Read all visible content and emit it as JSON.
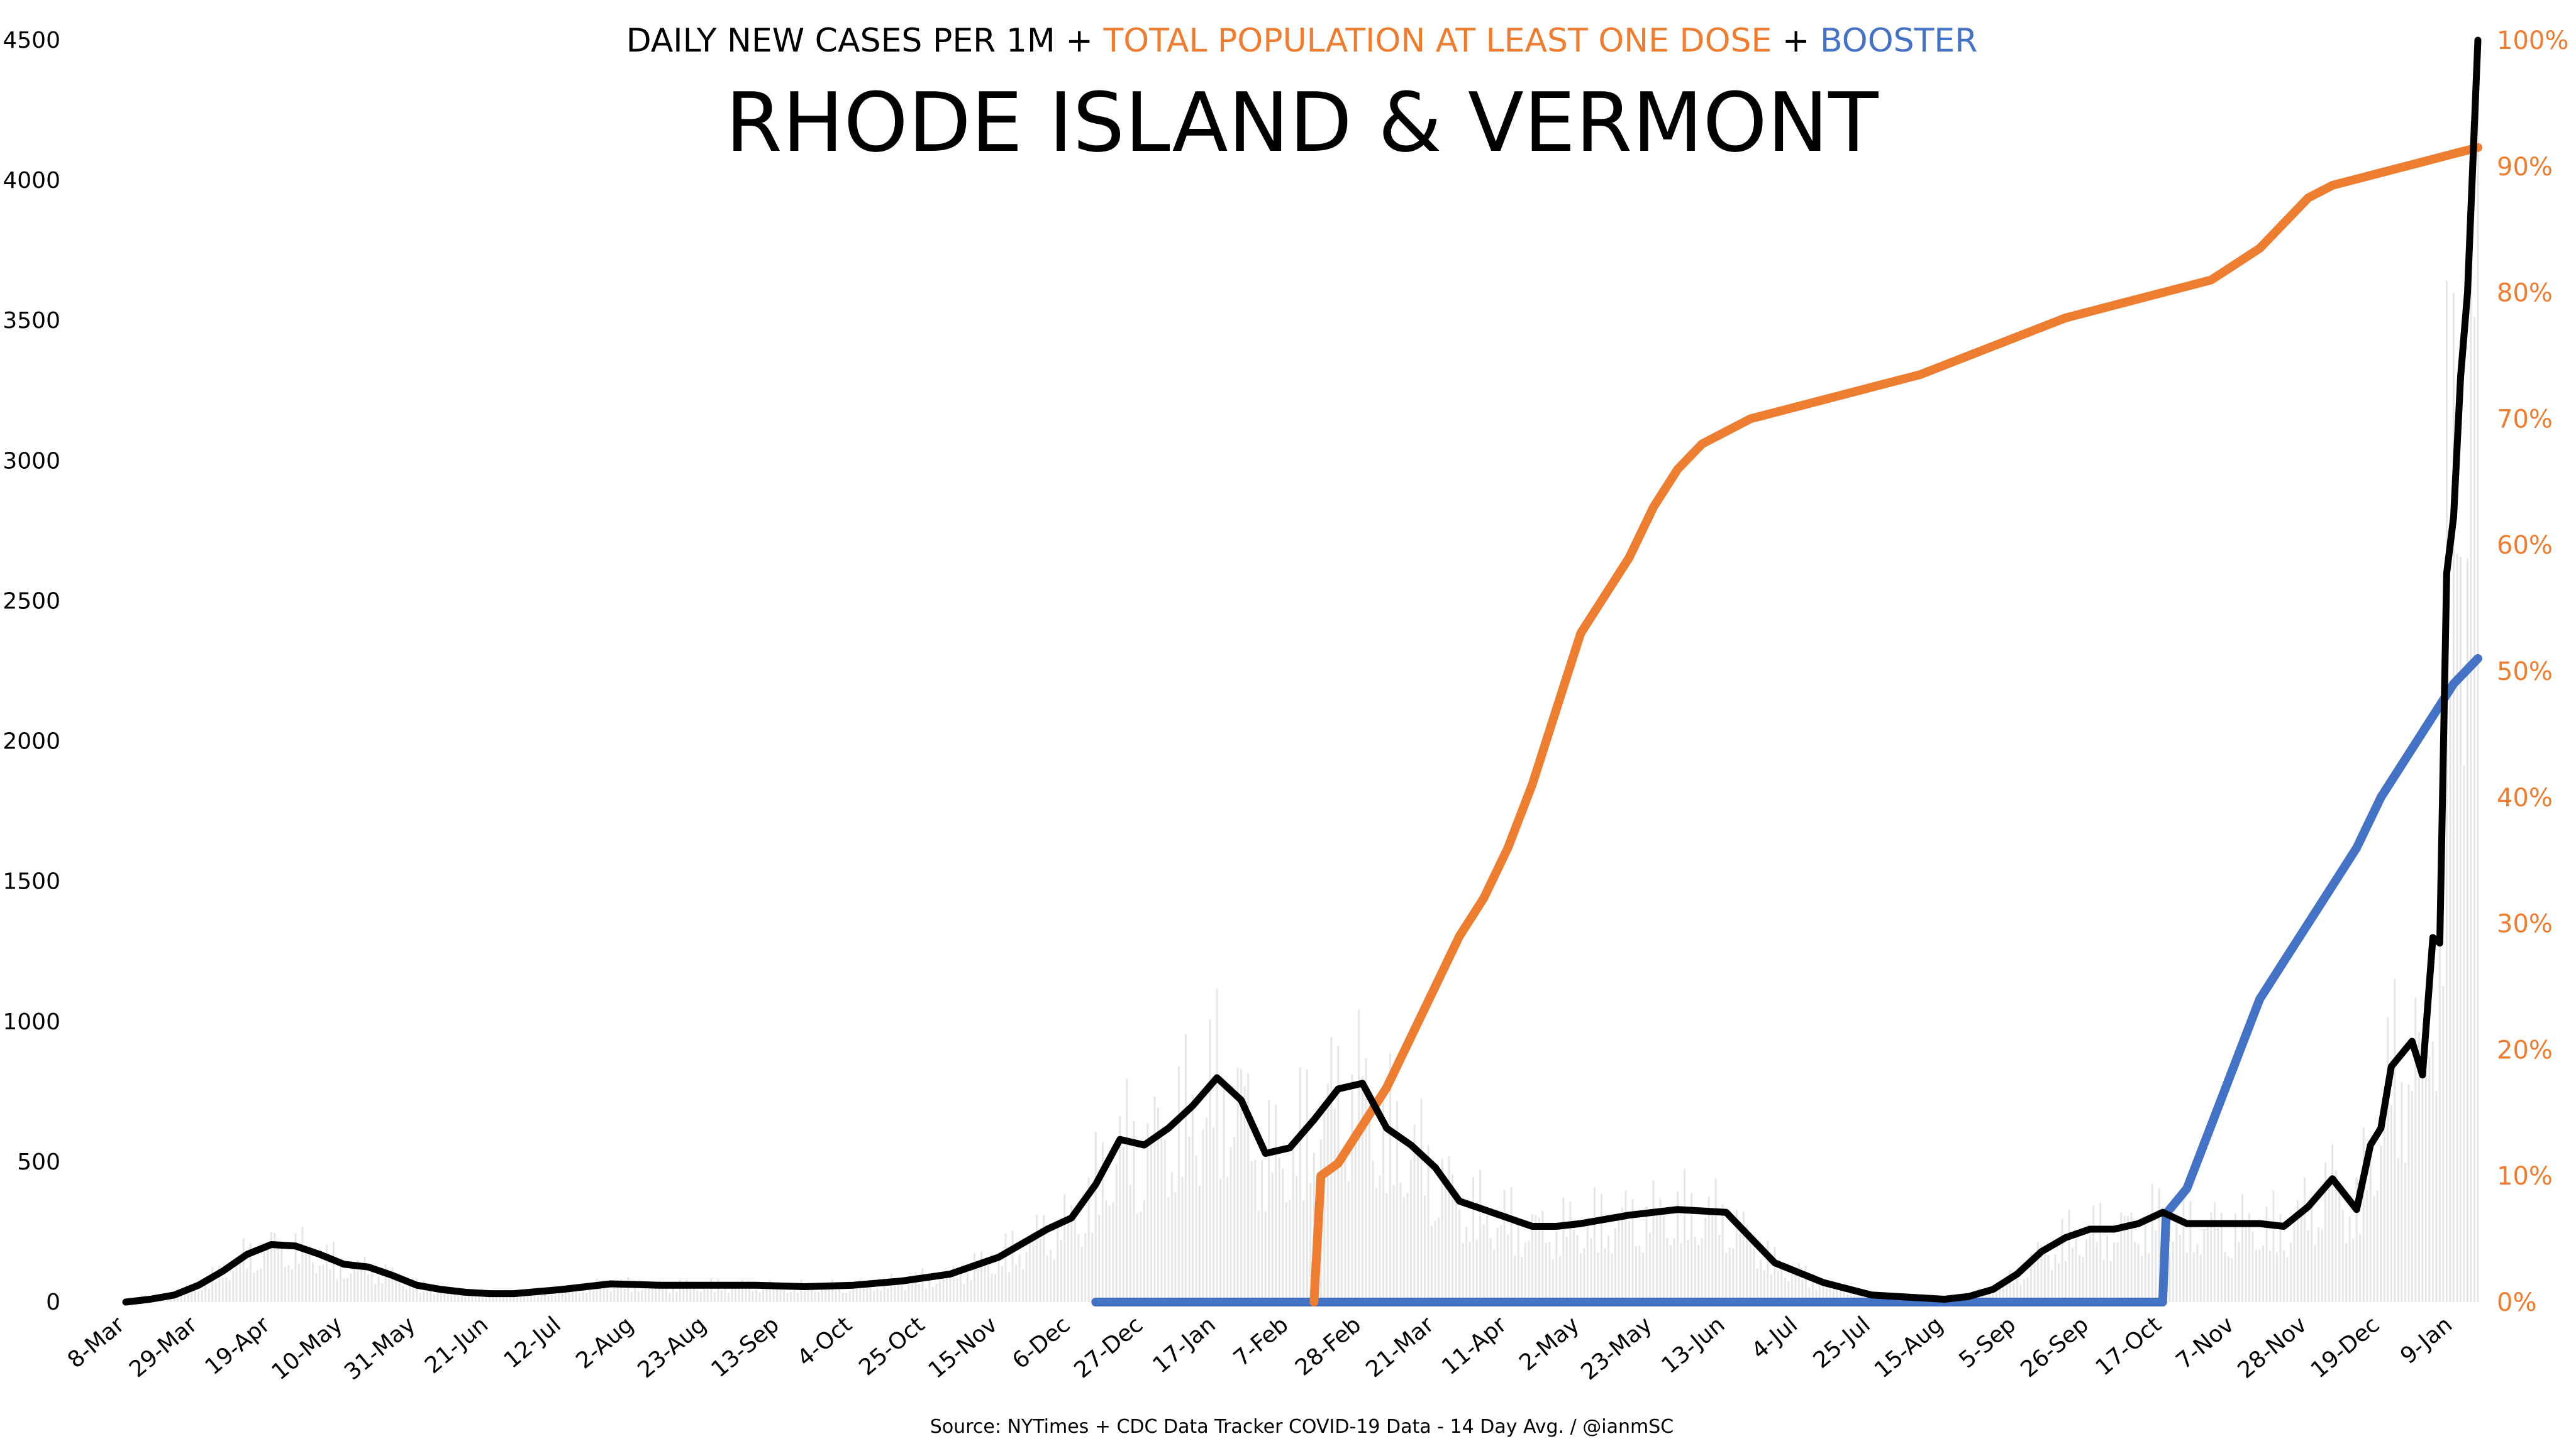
{
  "chart_data": {
    "type": "line",
    "supertitle_parts": [
      {
        "text": "DAILY NEW CASES PER 1M",
        "color": "#000000"
      },
      {
        "text": " + ",
        "color": "#000000"
      },
      {
        "text": "TOTAL POPULATION AT LEAST ONE DOSE",
        "color": "#ED7D31"
      },
      {
        "text": " + ",
        "color": "#000000"
      },
      {
        "text": "BOOSTER",
        "color": "#4472C4"
      }
    ],
    "title": "RHODE ISLAND & VERMONT",
    "source": "Source: NYTimes + CDC Data Tracker COVID-19 Data - 14 Day Avg. / @ianmSC",
    "x_tick_labels": [
      "8-Mar",
      "29-Mar",
      "19-Apr",
      "10-May",
      "31-May",
      "21-Jun",
      "12-Jul",
      "2-Aug",
      "23-Aug",
      "13-Sep",
      "4-Oct",
      "25-Oct",
      "15-Nov",
      "6-Dec",
      "27-Dec",
      "17-Jan",
      "7-Feb",
      "28-Feb",
      "21-Mar",
      "11-Apr",
      "2-May",
      "23-May",
      "13-Jun",
      "4-Jul",
      "25-Jul",
      "15-Aug",
      "5-Sep",
      "26-Sep",
      "17-Oct",
      "7-Nov",
      "28-Nov",
      "19-Dec",
      "9-Jan"
    ],
    "y_left": {
      "min": 0,
      "max": 4500,
      "step": 500,
      "ticks": [
        "0",
        "500",
        "1000",
        "1500",
        "2000",
        "2500",
        "3000",
        "3500",
        "4000",
        "4500"
      ]
    },
    "y_right": {
      "min": 0,
      "max": 100,
      "step": 10,
      "ticks": [
        "0%",
        "10%",
        "20%",
        "30%",
        "40%",
        "50%",
        "60%",
        "70%",
        "80%",
        "90%",
        "100%"
      ]
    },
    "x_range_days": [
      0,
      679
    ],
    "colors": {
      "cases": "#000000",
      "dose": "#ED7D31",
      "booster": "#4472C4",
      "daily_bars": "#e6e6e6"
    },
    "series": [
      {
        "key": "cases",
        "axis": "left",
        "x": [
          0,
          7,
          14,
          21,
          28,
          35,
          42,
          49,
          56,
          63,
          70,
          77,
          84,
          91,
          98,
          105,
          112,
          126,
          140,
          154,
          168,
          182,
          196,
          210,
          224,
          238,
          245,
          252,
          259,
          266,
          273,
          280,
          287,
          294,
          301,
          308,
          315,
          322,
          329,
          336,
          343,
          350,
          357,
          364,
          371,
          378,
          385,
          392,
          399,
          406,
          413,
          420,
          434,
          448,
          462,
          476,
          490,
          504,
          518,
          525,
          532,
          539,
          546,
          553,
          560,
          567,
          574,
          581,
          588,
          595,
          602,
          609,
          616,
          623,
          630,
          637,
          644,
          648,
          651,
          654,
          658,
          660,
          663,
          666,
          668,
          670,
          672,
          674,
          676,
          678,
          679
        ],
        "y": [
          0,
          10,
          25,
          60,
          110,
          170,
          205,
          200,
          170,
          135,
          125,
          95,
          60,
          45,
          35,
          30,
          30,
          45,
          65,
          60,
          60,
          60,
          55,
          60,
          75,
          100,
          130,
          160,
          210,
          260,
          300,
          420,
          580,
          560,
          620,
          700,
          800,
          720,
          530,
          550,
          650,
          760,
          780,
          620,
          560,
          480,
          360,
          330,
          300,
          270,
          270,
          280,
          310,
          330,
          320,
          140,
          70,
          25,
          15,
          10,
          20,
          45,
          100,
          180,
          230,
          260,
          260,
          280,
          320,
          280,
          280,
          280,
          280,
          270,
          340,
          440,
          330,
          560,
          620,
          840,
          900,
          930,
          810,
          1300,
          1280,
          2600,
          2800,
          3300,
          3600,
          4200,
          4500
        ]
      },
      {
        "key": "dose",
        "axis": "right",
        "x": [
          343,
          345,
          350,
          357,
          364,
          371,
          378,
          385,
          392,
          399,
          406,
          413,
          420,
          427,
          434,
          441,
          448,
          455,
          462,
          469,
          476,
          490,
          504,
          518,
          532,
          546,
          560,
          574,
          588,
          602,
          616,
          630,
          637,
          644,
          651,
          658,
          665,
          672,
          679
        ],
        "y": [
          0,
          10,
          11,
          14,
          17,
          21,
          25,
          29,
          32,
          36,
          41,
          47,
          53,
          56,
          59,
          63,
          66,
          68,
          69,
          70,
          70.5,
          71.5,
          72.5,
          73.5,
          75,
          76.5,
          78,
          79,
          80,
          81,
          83.5,
          87.5,
          88.5,
          89,
          89.5,
          90,
          90.5,
          91,
          91.5
        ]
      },
      {
        "key": "booster",
        "axis": "right",
        "x": [
          280,
          588,
          589,
          595,
          602,
          609,
          616,
          623,
          630,
          637,
          644,
          651,
          658,
          665,
          672,
          679
        ],
        "y": [
          0,
          0,
          7,
          9,
          14,
          19,
          24,
          27,
          30,
          33,
          36,
          40,
          43,
          46,
          49,
          51
        ]
      }
    ]
  }
}
